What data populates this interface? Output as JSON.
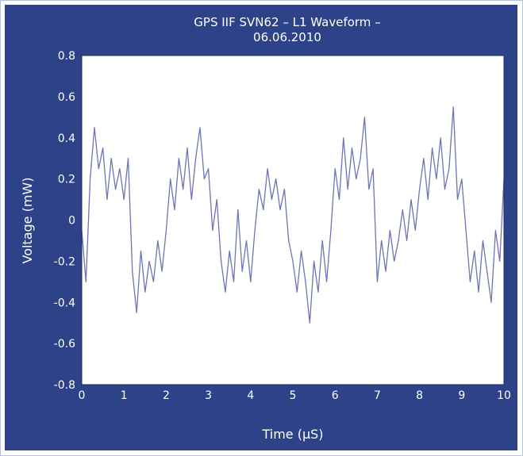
{
  "chart_data": {
    "type": "line",
    "title": "GPS IIF SVN62 – L1 Waveform –",
    "subtitle": "06.06.2010",
    "xlabel": "Time (µS)",
    "ylabel": "Voltage (mW)",
    "xlim": [
      0,
      10
    ],
    "ylim": [
      -0.8,
      0.8
    ],
    "xticks": [
      "0",
      "1",
      "2",
      "3",
      "4",
      "5",
      "6",
      "7",
      "8",
      "9",
      "10"
    ],
    "yticks": [
      "0.8",
      "0.6",
      "0.4",
      "0.2",
      "0",
      "-0.2",
      "-0.4",
      "-0.6",
      "-0.8"
    ],
    "grid": false,
    "colors": {
      "panel_background": "#2e4289",
      "plot_background": "#ffffff",
      "line": "#6e75b3",
      "text": "#ffffff"
    },
    "series": [
      {
        "x": [
          0,
          0.1,
          0.2,
          0.3,
          0.4,
          0.5,
          0.6,
          0.7,
          0.8,
          0.9,
          1.0,
          1.1,
          1.2,
          1.3,
          1.4,
          1.5,
          1.6,
          1.7,
          1.8,
          1.9,
          2.0,
          2.1,
          2.2,
          2.3,
          2.4,
          2.5,
          2.6,
          2.7,
          2.8,
          2.9,
          3.0,
          3.1,
          3.2,
          3.3,
          3.4,
          3.5,
          3.6,
          3.7,
          3.8,
          3.9,
          4.0,
          4.1,
          4.2,
          4.3,
          4.4,
          4.5,
          4.6,
          4.7,
          4.8,
          4.9,
          5.0,
          5.1,
          5.2,
          5.3,
          5.4,
          5.5,
          5.6,
          5.7,
          5.8,
          5.9,
          6.0,
          6.1,
          6.2,
          6.3,
          6.4,
          6.5,
          6.6,
          6.7,
          6.8,
          6.9,
          7.0,
          7.1,
          7.2,
          7.3,
          7.4,
          7.5,
          7.6,
          7.7,
          7.8,
          7.9,
          8.0,
          8.1,
          8.2,
          8.3,
          8.4,
          8.5,
          8.6,
          8.7,
          8.8,
          8.9,
          9.0,
          9.1,
          9.2,
          9.3,
          9.4,
          9.5,
          9.6,
          9.7,
          9.8,
          9.9,
          10.0
        ],
        "values": [
          -0.05,
          -0.3,
          0.2,
          0.45,
          0.25,
          0.35,
          0.1,
          0.3,
          0.15,
          0.25,
          0.1,
          0.3,
          -0.25,
          -0.45,
          -0.15,
          -0.35,
          -0.2,
          -0.3,
          -0.1,
          -0.25,
          -0.05,
          0.2,
          0.05,
          0.3,
          0.15,
          0.35,
          0.1,
          0.3,
          0.45,
          0.2,
          0.25,
          -0.05,
          0.1,
          -0.2,
          -0.35,
          -0.15,
          -0.3,
          0.05,
          -0.25,
          -0.1,
          -0.3,
          -0.05,
          0.15,
          0.05,
          0.25,
          0.1,
          0.2,
          0.05,
          0.15,
          -0.1,
          -0.2,
          -0.35,
          -0.15,
          -0.3,
          -0.5,
          -0.2,
          -0.35,
          -0.1,
          -0.3,
          -0.05,
          0.25,
          0.1,
          0.4,
          0.15,
          0.35,
          0.2,
          0.3,
          0.5,
          0.15,
          0.25,
          -0.3,
          -0.1,
          -0.25,
          -0.05,
          -0.2,
          -0.1,
          0.05,
          -0.1,
          0.1,
          -0.05,
          0.15,
          0.3,
          0.1,
          0.35,
          0.2,
          0.4,
          0.15,
          0.25,
          0.55,
          0.1,
          0.2,
          -0.05,
          -0.3,
          -0.15,
          -0.35,
          -0.1,
          -0.25,
          -0.4,
          -0.05,
          -0.2,
          0.2
        ]
      }
    ]
  }
}
